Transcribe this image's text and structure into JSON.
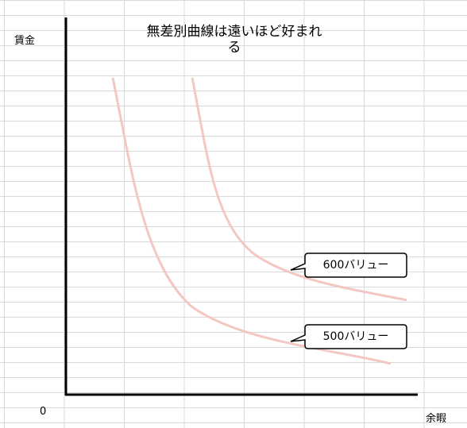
{
  "y_axis_label": "賃金",
  "x_axis_label": "余暇",
  "origin_label": "0",
  "title": "無差別曲線は遠いほど好まれる",
  "callouts": [
    {
      "label": "600バリュー"
    },
    {
      "label": "500バリュー"
    }
  ]
}
